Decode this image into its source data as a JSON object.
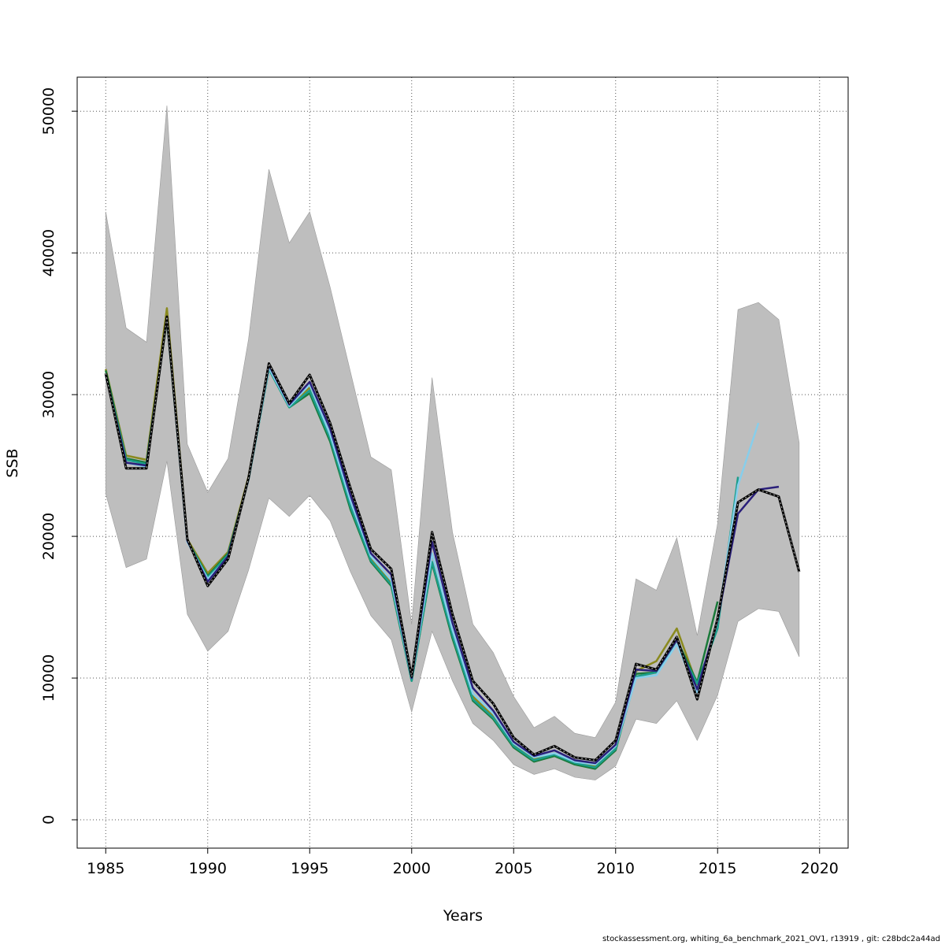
{
  "footer_text": "stockassessment.org, whiting_6a_benchmark_2021_OV1, r13919 , git: c28bdc2a44ad",
  "chart_data": {
    "type": "line",
    "xlabel": "Years",
    "ylabel": "SSB",
    "xlim": [
      1983.6,
      2021.4
    ],
    "ylim": [
      -2000,
      52400
    ],
    "x_ticks": [
      1985,
      1990,
      1995,
      2000,
      2005,
      2010,
      2015,
      2020
    ],
    "y_ticks": [
      0,
      10000,
      20000,
      30000,
      40000,
      50000
    ],
    "grid": true,
    "confidence_band": {
      "color": "#bebebe",
      "x": [
        1985,
        1986,
        1987,
        1988,
        1989,
        1990,
        1991,
        1992,
        1993,
        1994,
        1995,
        1996,
        1997,
        1998,
        1999,
        2000,
        2001,
        2002,
        2003,
        2004,
        2005,
        2006,
        2007,
        2008,
        2009,
        2010,
        2011,
        2012,
        2013,
        2014,
        2015,
        2016,
        2017,
        2018,
        2019
      ],
      "upper": [
        42900,
        34700,
        33700,
        50400,
        26500,
        23100,
        25500,
        33900,
        45900,
        40700,
        42900,
        37600,
        31600,
        25600,
        24700,
        13800,
        31200,
        20300,
        13800,
        11800,
        8700,
        6500,
        7300,
        6100,
        5800,
        8300,
        17000,
        16200,
        19900,
        13000,
        20900,
        36000,
        36500,
        35300,
        26600
      ],
      "lower": [
        23000,
        17800,
        18400,
        25300,
        14500,
        11900,
        13300,
        17600,
        22700,
        21400,
        22900,
        21100,
        17500,
        14400,
        12700,
        7600,
        13300,
        9800,
        6800,
        5600,
        3900,
        3200,
        3600,
        3000,
        2800,
        3800,
        7100,
        6800,
        8400,
        5600,
        8800,
        14000,
        14900,
        14700,
        11500
      ]
    },
    "series": [
      {
        "color": "#000000",
        "dashed": true,
        "x": [
          1985,
          1986,
          1987,
          1988,
          1989,
          1990,
          1991,
          1992,
          1993,
          1994,
          1995,
          1996,
          1997,
          1998,
          1999,
          2000,
          2001,
          2002,
          2003,
          2004,
          2005,
          2006,
          2007,
          2008,
          2009,
          2010,
          2011,
          2012,
          2013,
          2014,
          2015,
          2016,
          2017,
          2018,
          2019
        ],
        "values": [
          31500,
          24800,
          24800,
          35500,
          19800,
          16500,
          18400,
          24100,
          32200,
          29400,
          31400,
          28000,
          23400,
          19100,
          17700,
          10100,
          20300,
          14500,
          9800,
          8200,
          5800,
          4600,
          5200,
          4400,
          4200,
          5600,
          11000,
          10600,
          12900,
          8500,
          14200,
          22400,
          23300,
          22800,
          17500
        ]
      },
      {
        "color": "#2a1f7a",
        "dashed": false,
        "x": [
          1985,
          1986,
          1987,
          1988,
          1989,
          1990,
          1991,
          1992,
          1993,
          1994,
          1995,
          1996,
          1997,
          1998,
          1999,
          2000,
          2001,
          2002,
          2003,
          2004,
          2005,
          2006,
          2007,
          2008,
          2009,
          2010,
          2011,
          2012,
          2013,
          2014,
          2015,
          2016,
          2017,
          2018
        ],
        "values": [
          31400,
          25200,
          25000,
          35500,
          19700,
          16800,
          18600,
          24100,
          32100,
          29300,
          30900,
          27600,
          22900,
          18800,
          17300,
          10000,
          19600,
          13900,
          9300,
          7700,
          5500,
          4500,
          4900,
          4200,
          4000,
          5300,
          10600,
          10500,
          12700,
          9200,
          14100,
          21600,
          23300,
          23500
        ]
      },
      {
        "color": "#87ceeb",
        "dashed": false,
        "x": [
          1985,
          1986,
          1987,
          1988,
          1989,
          1990,
          1991,
          1992,
          1993,
          1994,
          1995,
          1996,
          1997,
          1998,
          1999,
          2000,
          2001,
          2002,
          2003,
          2004,
          2005,
          2006,
          2007,
          2008,
          2009,
          2010,
          2011,
          2012,
          2013,
          2014,
          2015,
          2016,
          2017
        ],
        "values": [
          31400,
          25200,
          24900,
          35400,
          19600,
          17000,
          18500,
          24000,
          31900,
          29200,
          30700,
          27200,
          22500,
          18600,
          16900,
          10000,
          18800,
          13400,
          8900,
          7500,
          5400,
          4400,
          4700,
          4100,
          3900,
          5200,
          10000,
          10200,
          12400,
          9000,
          14000,
          23600,
          28000
        ]
      },
      {
        "color": "#1a9e8c",
        "dashed": false,
        "x": [
          1985,
          1986,
          1987,
          1988,
          1989,
          1990,
          1991,
          1992,
          1993,
          1994,
          1995,
          1996,
          1997,
          1998,
          1999,
          2000,
          2001,
          2002,
          2003,
          2004,
          2005,
          2006,
          2007,
          2008,
          2009,
          2010,
          2011,
          2012,
          2013,
          2014,
          2015,
          2016
        ],
        "values": [
          31500,
          25400,
          25100,
          35400,
          19700,
          17100,
          18700,
          24000,
          31800,
          29100,
          30300,
          26900,
          22100,
          18300,
          16600,
          9800,
          18200,
          13000,
          8500,
          7200,
          5200,
          4200,
          4600,
          4000,
          3700,
          5000,
          10100,
          10400,
          12400,
          9600,
          13500,
          24200
        ]
      },
      {
        "color": "#1a7a3a",
        "dashed": false,
        "x": [
          1985,
          1986,
          1987,
          1988,
          1989,
          1990,
          1991,
          1992,
          1993,
          1994,
          1995,
          1996,
          1997,
          1998,
          1999,
          2000,
          2001,
          2002,
          2003,
          2004,
          2005,
          2006,
          2007,
          2008,
          2009,
          2010,
          2011,
          2012,
          2013,
          2014,
          2015
        ],
        "values": [
          31700,
          25500,
          25200,
          35300,
          19700,
          17200,
          18800,
          24000,
          31800,
          29100,
          30100,
          26700,
          21900,
          18200,
          16500,
          9800,
          18100,
          12800,
          8400,
          7100,
          5100,
          4100,
          4500,
          3900,
          3600,
          4900,
          10300,
          10400,
          12700,
          9700,
          15400
        ]
      },
      {
        "color": "#8a8a1e",
        "dashed": false,
        "x": [
          1985,
          1986,
          1987,
          1988,
          1989,
          1990,
          1991,
          1992,
          1993,
          1994,
          1995,
          1996,
          1997,
          1998,
          1999,
          2000,
          2001,
          2002,
          2003,
          2004,
          2005,
          2006,
          2007,
          2008,
          2009,
          2010,
          2011,
          2012,
          2013,
          2014
        ],
        "values": [
          31800,
          25700,
          25400,
          36100,
          19800,
          17400,
          18900,
          24200,
          32000,
          29200,
          30500,
          27000,
          22300,
          18500,
          16800,
          9900,
          18800,
          13200,
          8700,
          7300,
          5300,
          4300,
          4700,
          4000,
          3800,
          5100,
          10500,
          11200,
          13500,
          9500
        ]
      }
    ]
  }
}
